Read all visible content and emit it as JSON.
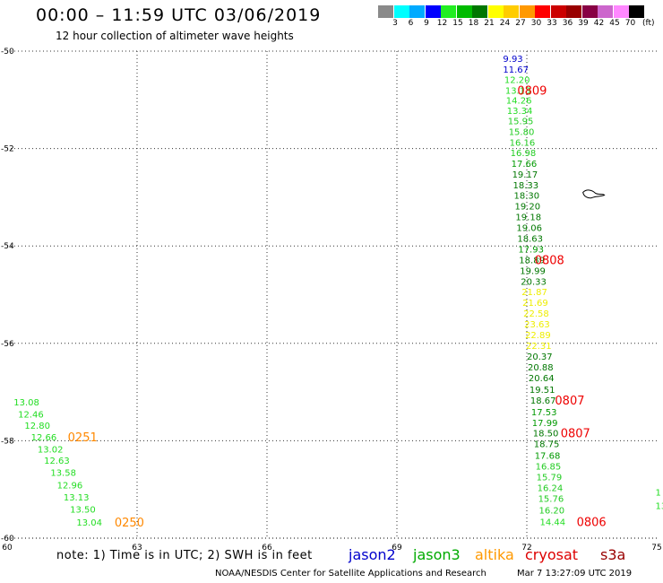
{
  "title": "00:00 – 11:59 UTC 03/06/2019",
  "subtitle": "12 hour collection of altimeter wave heights",
  "legend": {
    "unit": "(ft)",
    "bins": [
      {
        "label": "3",
        "color": "#8a8a8a"
      },
      {
        "label": "6",
        "color": "#00ffff"
      },
      {
        "label": "9",
        "color": "#00aaff"
      },
      {
        "label": "12",
        "color": "#0000ff"
      },
      {
        "label": "15",
        "color": "#22ee22"
      },
      {
        "label": "18",
        "color": "#00bb00"
      },
      {
        "label": "21",
        "color": "#007700"
      },
      {
        "label": "24",
        "color": "#ffff00"
      },
      {
        "label": "27",
        "color": "#ffcc00"
      },
      {
        "label": "30",
        "color": "#ff9900"
      },
      {
        "label": "33",
        "color": "#ff0000"
      },
      {
        "label": "36",
        "color": "#cc0000"
      },
      {
        "label": "39",
        "color": "#990000"
      },
      {
        "label": "42",
        "color": "#880044"
      },
      {
        "label": "45",
        "color": "#cc66cc"
      },
      {
        "label": "70",
        "color": "#ff88ff"
      },
      {
        "label": "",
        "color": "#000000"
      }
    ]
  },
  "axes": {
    "lon_ticks": [
      "60",
      "63",
      "66",
      "69",
      "72",
      "75"
    ],
    "lat_ticks": [
      "-50",
      "-52",
      "-54",
      "-56",
      "-58",
      "-60"
    ]
  },
  "tracks": [
    {
      "satellite": "jason3",
      "points": [
        {
          "lon": 71.45,
          "lat": -50.15,
          "value": "9.93",
          "color": "#0000cc"
        },
        {
          "lon": 71.45,
          "lat": -50.37,
          "value": "11.67",
          "color": "#0000cc"
        },
        {
          "lon": 71.48,
          "lat": -50.58,
          "value": "12.20",
          "color": "#22dd22"
        },
        {
          "lon": 71.5,
          "lat": -50.8,
          "value": "13.13",
          "color": "#22dd22"
        },
        {
          "lon": 71.52,
          "lat": -51.0,
          "value": "14.26",
          "color": "#22dd22"
        },
        {
          "lon": 71.54,
          "lat": -51.22,
          "value": "13.34",
          "color": "#22dd22"
        },
        {
          "lon": 71.56,
          "lat": -51.43,
          "value": "15.95",
          "color": "#22cc22"
        },
        {
          "lon": 71.58,
          "lat": -51.65,
          "value": "15.80",
          "color": "#22cc22"
        },
        {
          "lon": 71.6,
          "lat": -51.87,
          "value": "16.16",
          "color": "#22cc22"
        },
        {
          "lon": 71.62,
          "lat": -52.08,
          "value": "16.98",
          "color": "#22cc22"
        },
        {
          "lon": 71.64,
          "lat": -52.3,
          "value": "17.66",
          "color": "#009900"
        },
        {
          "lon": 71.66,
          "lat": -52.52,
          "value": "19.17",
          "color": "#007700"
        },
        {
          "lon": 71.68,
          "lat": -52.74,
          "value": "18.33",
          "color": "#007700"
        },
        {
          "lon": 71.7,
          "lat": -52.96,
          "value": "18.30",
          "color": "#007700"
        },
        {
          "lon": 71.72,
          "lat": -53.18,
          "value": "19.20",
          "color": "#007700"
        },
        {
          "lon": 71.74,
          "lat": -53.4,
          "value": "19.18",
          "color": "#007700"
        },
        {
          "lon": 71.76,
          "lat": -53.62,
          "value": "19.06",
          "color": "#007700"
        },
        {
          "lon": 71.78,
          "lat": -53.84,
          "value": "18.63",
          "color": "#007700"
        },
        {
          "lon": 71.8,
          "lat": -54.06,
          "value": "17.93",
          "color": "#009900"
        },
        {
          "lon": 71.82,
          "lat": -54.28,
          "value": "18.89",
          "color": "#007700"
        },
        {
          "lon": 71.84,
          "lat": -54.5,
          "value": "19.99",
          "color": "#007700"
        },
        {
          "lon": 71.86,
          "lat": -54.72,
          "value": "20.33",
          "color": "#007700"
        },
        {
          "lon": 71.88,
          "lat": -54.94,
          "value": "21.87",
          "color": "#eeee00"
        },
        {
          "lon": 71.9,
          "lat": -55.16,
          "value": "21.69",
          "color": "#eeee00"
        },
        {
          "lon": 71.92,
          "lat": -55.38,
          "value": "22.58",
          "color": "#eeee00"
        },
        {
          "lon": 71.94,
          "lat": -55.6,
          "value": "23.63",
          "color": "#eeee00"
        },
        {
          "lon": 71.96,
          "lat": -55.82,
          "value": "22.89",
          "color": "#eeee00"
        },
        {
          "lon": 71.98,
          "lat": -56.04,
          "value": "22.31",
          "color": "#eeee00"
        },
        {
          "lon": 72.0,
          "lat": -56.26,
          "value": "20.37",
          "color": "#007700"
        },
        {
          "lon": 72.02,
          "lat": -56.48,
          "value": "20.88",
          "color": "#007700"
        },
        {
          "lon": 72.04,
          "lat": -56.7,
          "value": "20.64",
          "color": "#007700"
        },
        {
          "lon": 72.06,
          "lat": -56.94,
          "value": "19.51",
          "color": "#007700"
        },
        {
          "lon": 72.08,
          "lat": -57.16,
          "value": "18.67",
          "color": "#007700"
        },
        {
          "lon": 72.1,
          "lat": -57.4,
          "value": "17.53",
          "color": "#009900"
        },
        {
          "lon": 72.12,
          "lat": -57.62,
          "value": "17.99",
          "color": "#009900"
        },
        {
          "lon": 72.14,
          "lat": -57.84,
          "value": "18.50",
          "color": "#007700"
        },
        {
          "lon": 72.16,
          "lat": -58.06,
          "value": "18.75",
          "color": "#007700"
        },
        {
          "lon": 72.18,
          "lat": -58.3,
          "value": "17.68",
          "color": "#009900"
        },
        {
          "lon": 72.2,
          "lat": -58.52,
          "value": "16.85",
          "color": "#22cc22"
        },
        {
          "lon": 72.22,
          "lat": -58.74,
          "value": "15.79",
          "color": "#22cc22"
        },
        {
          "lon": 72.24,
          "lat": -58.96,
          "value": "16.24",
          "color": "#22cc22"
        },
        {
          "lon": 72.26,
          "lat": -59.18,
          "value": "15.76",
          "color": "#22cc22"
        },
        {
          "lon": 72.28,
          "lat": -59.42,
          "value": "16.20",
          "color": "#22cc22"
        },
        {
          "lon": 72.3,
          "lat": -59.66,
          "value": "14.44",
          "color": "#22dd22"
        }
      ]
    },
    {
      "satellite": "altika",
      "points": [
        {
          "lon": 60.15,
          "lat": -57.2,
          "value": "13.08",
          "color": "#22dd22"
        },
        {
          "lon": 60.25,
          "lat": -57.45,
          "value": "12.46",
          "color": "#22dd22"
        },
        {
          "lon": 60.4,
          "lat": -57.68,
          "value": "12.80",
          "color": "#22dd22"
        },
        {
          "lon": 60.55,
          "lat": -57.92,
          "value": "12.66",
          "color": "#22dd22"
        },
        {
          "lon": 60.7,
          "lat": -58.17,
          "value": "13.02",
          "color": "#22dd22"
        },
        {
          "lon": 60.85,
          "lat": -58.4,
          "value": "12.63",
          "color": "#22dd22"
        },
        {
          "lon": 61.0,
          "lat": -58.65,
          "value": "13.58",
          "color": "#22dd22"
        },
        {
          "lon": 61.15,
          "lat": -58.9,
          "value": "12.96",
          "color": "#22dd22"
        },
        {
          "lon": 61.3,
          "lat": -59.15,
          "value": "13.13",
          "color": "#22dd22"
        },
        {
          "lon": 61.45,
          "lat": -59.4,
          "value": "13.50",
          "color": "#22dd22"
        },
        {
          "lon": 61.6,
          "lat": -59.67,
          "value": "13.04",
          "color": "#22dd22"
        }
      ]
    },
    {
      "satellite": "unlabeled",
      "points": [
        {
          "lon": 74.97,
          "lat": -59.05,
          "value": "1",
          "color": "#22dd22"
        },
        {
          "lon": 74.97,
          "lat": -59.33,
          "value": "13",
          "color": "#22dd22"
        }
      ]
    }
  ],
  "time_labels": [
    {
      "lon": 71.78,
      "lat": -50.8,
      "text": "0809",
      "color": "#ee0000"
    },
    {
      "lon": 72.18,
      "lat": -54.28,
      "text": "0808",
      "color": "#ee0000"
    },
    {
      "lon": 72.65,
      "lat": -57.16,
      "text": "0807",
      "color": "#ee0000"
    },
    {
      "lon": 72.78,
      "lat": -57.84,
      "text": "0807",
      "color": "#ee0000"
    },
    {
      "lon": 73.15,
      "lat": -59.66,
      "text": "0806",
      "color": "#ee0000"
    },
    {
      "lon": 61.4,
      "lat": -57.92,
      "text": "0251",
      "color": "#ff8800"
    },
    {
      "lon": 62.48,
      "lat": -59.67,
      "text": "0250",
      "color": "#ff8800"
    }
  ],
  "note": "note:  1) Time is in UTC;  2) SWH is in feet",
  "satellites": [
    {
      "name": "jason2",
      "color": "#0000cc"
    },
    {
      "name": "jason3",
      "color": "#00aa00"
    },
    {
      "name": "altika",
      "color": "#ff9900"
    },
    {
      "name": "cryosat",
      "color": "#dd0000"
    },
    {
      "name": "s3a",
      "color": "#990000"
    }
  ],
  "credit": "NOAA/NESDIS Center for Satellite Applications and Research",
  "credit_time": "Mar  7 13:27:09 UTC 2019"
}
